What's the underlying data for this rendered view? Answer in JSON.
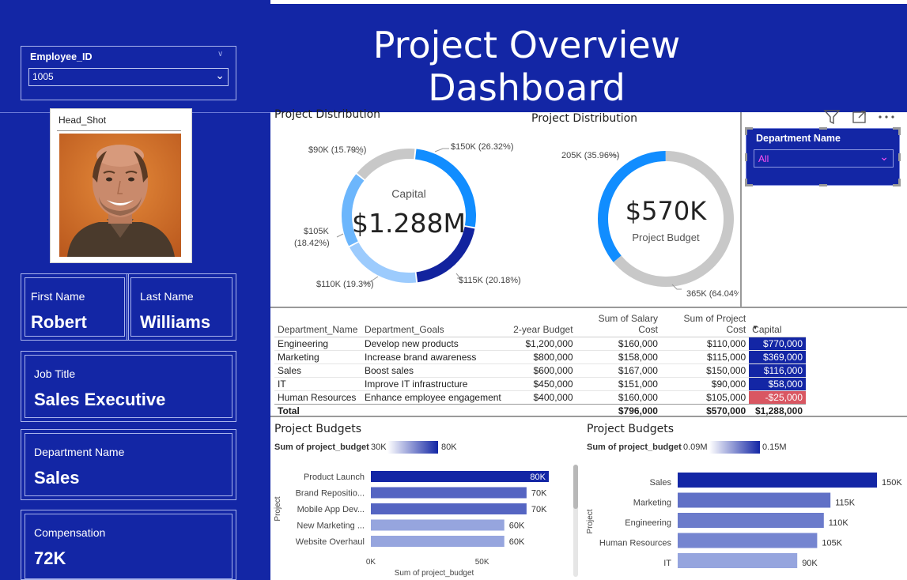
{
  "header": {
    "title": "Project Overview Dashboard"
  },
  "employee_slicer": {
    "label": "Employee_ID",
    "value": "1005"
  },
  "headshot": {
    "label": "Head_Shot"
  },
  "cards": {
    "first_name": {
      "label": "First Name",
      "value": "Robert"
    },
    "last_name": {
      "label": "Last Name",
      "value": "Williams"
    },
    "job_title": {
      "label": "Job Title",
      "value": "Sales Executive"
    },
    "department": {
      "label": "Department Name",
      "value": "Sales"
    },
    "compensation": {
      "label": "Compensation",
      "value": "72K"
    }
  },
  "dept_slicer": {
    "label": "Department Name",
    "value": "All"
  },
  "chart_data": [
    {
      "type": "pie",
      "title": "Project Distribution",
      "center_label": "Capital",
      "center_value": "$1.288M",
      "slices": [
        {
          "label": "$150K (26.32%)",
          "value": 150,
          "color": "#118dff"
        },
        {
          "label": "$115K (20.18%)",
          "value": 115,
          "color": "#12239e"
        },
        {
          "label": "$110K (19.3%)",
          "value": 110,
          "color": "#9ccbfd"
        },
        {
          "label_line1": "$105K",
          "label_line2": "(18.42%)",
          "value": 105,
          "color": "#6cb6fc"
        },
        {
          "label": "$90K (15.79%)",
          "value": 90,
          "color": "#c8c8c8"
        }
      ]
    },
    {
      "type": "pie",
      "title": "Project Distribution",
      "center_value": "$570K",
      "center_label": "Project Budget",
      "slices": [
        {
          "label": "205K (35.96%)",
          "value": 205,
          "color": "#118dff"
        },
        {
          "label": "365K (64.04%)",
          "value": 365,
          "color": "#c8c8c8"
        }
      ]
    },
    {
      "type": "table",
      "columns": [
        "Department_Name",
        "Department_Goals",
        "2-year Budget",
        "Sum of Salary Cost",
        "Sum of Project Cost",
        "Capital"
      ],
      "rows": [
        [
          "Engineering",
          "Develop new products",
          "$1,200,000",
          "$160,000",
          "$110,000",
          "$770,000"
        ],
        [
          "Marketing",
          "Increase brand awareness",
          "$800,000",
          "$158,000",
          "$115,000",
          "$369,000"
        ],
        [
          "Sales",
          "Boost sales",
          "$600,000",
          "$167,000",
          "$150,000",
          "$116,000"
        ],
        [
          "IT",
          "Improve IT infrastructure",
          "$450,000",
          "$151,000",
          "$90,000",
          "$58,000"
        ],
        [
          "Human Resources",
          "Enhance employee engagement",
          "$400,000",
          "$160,000",
          "$105,000",
          "-$25,000"
        ]
      ],
      "total": [
        "Total",
        "",
        "",
        "$796,000",
        "$570,000",
        "$1,288,000"
      ]
    },
    {
      "type": "bar",
      "title": "Project Budgets",
      "legend_title": "Sum of project_budget",
      "legend_min": "30K",
      "legend_max": "80K",
      "ylabel": "Project",
      "xlabel": "Sum of project_budget",
      "xticks": [
        "0K",
        "50K"
      ],
      "xlim": [
        0,
        80
      ],
      "categories": [
        "Product Launch",
        "Brand Repositio...",
        "Mobile App Dev...",
        "New Marketing ...",
        "Website Overhaul"
      ],
      "values": [
        80,
        70,
        70,
        60,
        60
      ],
      "value_labels": [
        "80K",
        "70K",
        "70K",
        "60K",
        "60K"
      ]
    },
    {
      "type": "bar",
      "title": "Project Budgets",
      "legend_title": "Sum of project_budget",
      "legend_min": "0.09M",
      "legend_max": "0.15M",
      "ylabel": "Project",
      "xlim": [
        0,
        150
      ],
      "categories": [
        "Sales",
        "Marketing",
        "Engineering",
        "Human Resources",
        "IT"
      ],
      "values": [
        150,
        115,
        110,
        105,
        90
      ],
      "value_labels": [
        "150K",
        "115K",
        "110K",
        "105K",
        "90K"
      ]
    }
  ]
}
